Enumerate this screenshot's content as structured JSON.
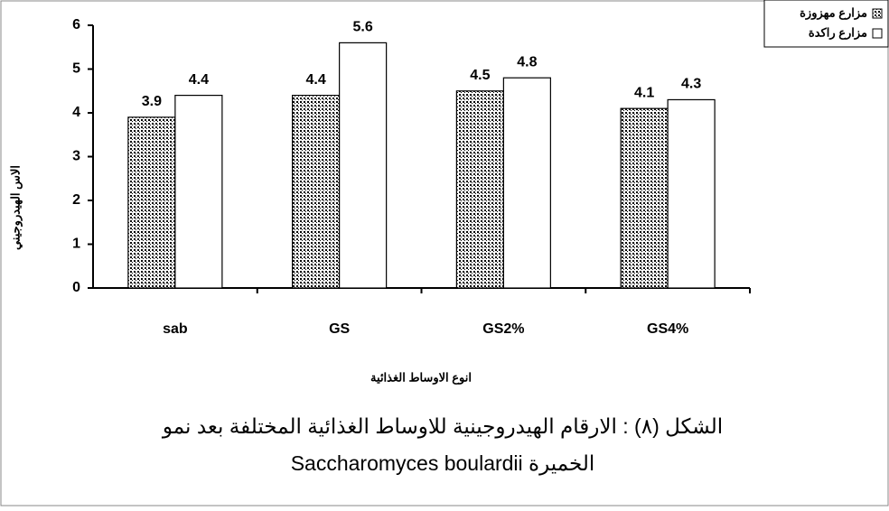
{
  "chart_data": {
    "type": "bar",
    "caption": [
      "الشكل (٨) : الارقام الهيدروجينية للاوساط الغذائية المختلفة بعد نمو",
      "الخميرة Saccharomyces boulardii"
    ],
    "x_label": "انوع الاوساط الغذائية",
    "y_label": "الاس الهيدروجيني",
    "categories": [
      "sab",
      "GS",
      "GS2%",
      "GS4%"
    ],
    "series": [
      {
        "name": "مزارع مهزوزة",
        "color": "#000000",
        "pattern": "dots",
        "values": [
          3.9,
          4.4,
          4.5,
          4.1
        ]
      },
      {
        "name": "مزارع راكدة",
        "color": "#ffffff",
        "pattern": "solid",
        "values": [
          4.4,
          5.6,
          4.8,
          4.3
        ]
      }
    ],
    "ylim": [
      0,
      6
    ],
    "yticks": [
      0,
      1,
      2,
      3,
      4,
      5,
      6
    ],
    "grid": false,
    "legend": "top-right"
  }
}
